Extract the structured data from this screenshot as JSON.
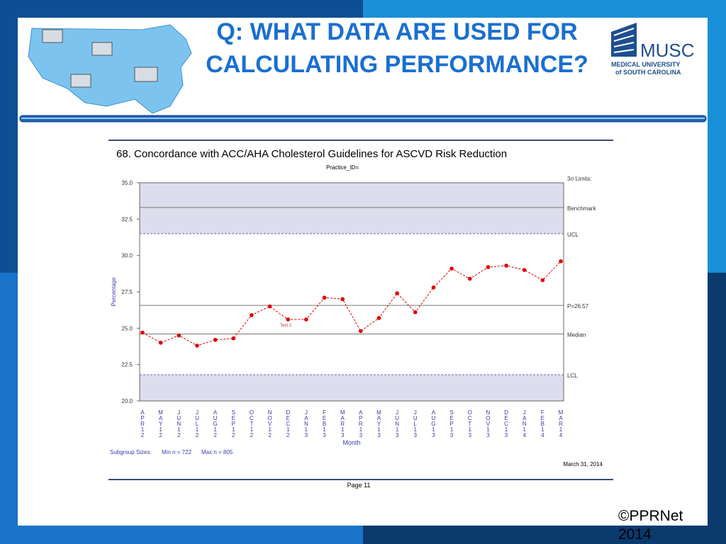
{
  "slide_title": "Q: WHAT DATA ARE USED FOR CALCULATING PERFORMANCE?",
  "logo": {
    "name": "MUSC",
    "line1": "MEDICAL UNIVERSITY",
    "line2": "of SOUTH CAROLINA"
  },
  "copyright": "©PPRNet 2014",
  "chart_data": {
    "type": "line",
    "title": "68. Concordance with ACC/AHA Cholesterol Guidelines for ASCVD Risk Reduction",
    "subtitle": "Practice_ID=",
    "y_label": "Percentage",
    "x_label": "Month",
    "categories": [
      "APR12",
      "MAY12",
      "JUN12",
      "JUL12",
      "AUG12",
      "SEP12",
      "OCT12",
      "NOV12",
      "DEC12",
      "JAN13",
      "FEB13",
      "MAR13",
      "APR13",
      "MAY13",
      "JUN13",
      "JUL13",
      "AUG13",
      "SEP13",
      "OCT13",
      "NOV13",
      "DEC13",
      "JAN14",
      "FEB14",
      "MAR14"
    ],
    "series": [
      {
        "name": "Percentage",
        "color": "#e00000",
        "values": [
          24.7,
          24.0,
          24.5,
          23.8,
          24.2,
          24.3,
          25.9,
          26.5,
          25.6,
          25.6,
          27.1,
          27.0,
          24.8,
          25.7,
          27.4,
          26.1,
          27.8,
          29.1,
          28.4,
          29.2,
          29.3,
          29.0,
          28.3,
          29.6
        ]
      }
    ],
    "ylim": [
      20,
      35
    ],
    "yticks": [
      {
        "value": 20,
        "label": "20.0"
      },
      22.5,
      {
        "value": 25,
        "label": "25.0"
      },
      27.5,
      {
        "value": 30,
        "label": "30.0"
      },
      32.5,
      {
        "value": 35,
        "label": "35.0"
      }
    ],
    "limits_label": "3σ Limits:",
    "reference_lines": [
      {
        "label": "Benchmark",
        "value": 33.3
      },
      {
        "label": "UCL",
        "value": 31.5
      },
      {
        "label": "P=26.57",
        "value": 26.57
      },
      {
        "label": "Median",
        "value": 24.6
      },
      {
        "label": "LCL",
        "value": 21.8
      }
    ],
    "annotation": {
      "text": "Test 2",
      "index": 8
    },
    "subgroup_label": "Subgroup Sizes:",
    "min_n": "Min n = 722",
    "max_n": "Max n = 805",
    "date": "March 31, 2014",
    "page": "Page 11"
  }
}
